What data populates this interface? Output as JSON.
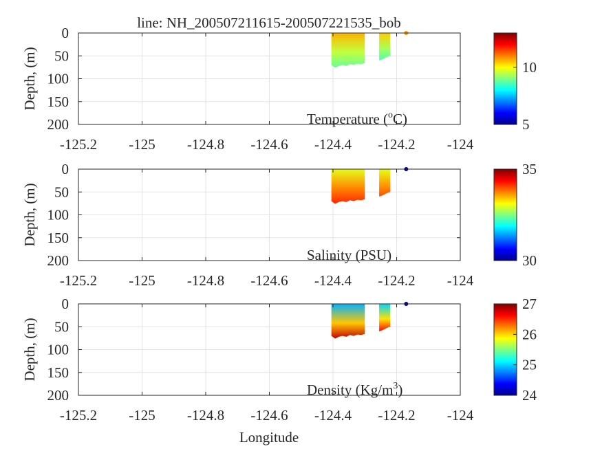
{
  "title": "line: NH_200507211615-200507221535_bob",
  "xlabel": "Longitude",
  "colormap": [
    "#00008f",
    "#0000ff",
    "#0080ff",
    "#00ffff",
    "#80ff80",
    "#ffff00",
    "#ff8000",
    "#ff0000",
    "#800000"
  ],
  "chart_data": [
    {
      "type": "heatmap",
      "panel_label": "Temperature (",
      "panel_label_sup": "o",
      "panel_label_tail": "C)",
      "ylabel": "Depth, (m)",
      "xlim": [
        -125.2,
        -124.0
      ],
      "ylim": [
        0,
        200
      ],
      "y_reversed": true,
      "xticks": [
        "-125.2",
        "-125",
        "-124.8",
        "-124.6",
        "-124.4",
        "-124.2",
        "-124"
      ],
      "yticks": [
        "0",
        "50",
        "100",
        "150",
        "200"
      ],
      "clim": [
        5,
        13
      ],
      "cticks": [
        5,
        10
      ],
      "grid": true,
      "sections": [
        {
          "x": [
            -124.405,
            -124.3
          ],
          "max_depth": [
            70,
            76,
            72,
            70,
            72,
            68,
            70,
            67,
            68,
            66
          ],
          "surface_value": 10.6,
          "bottom_value": 8.8
        },
        {
          "x": [
            -124.255,
            -124.22
          ],
          "max_depth": [
            60,
            58,
            55,
            52,
            50
          ],
          "surface_value": 10.4,
          "bottom_value": 8.6
        }
      ],
      "surface_point": {
        "x": -124.17,
        "y": 0,
        "value": 10.8
      }
    },
    {
      "type": "heatmap",
      "panel_label": "Salinity (PSU)",
      "panel_label_sup": "",
      "panel_label_tail": "",
      "ylabel": "Depth, (m)",
      "xlim": [
        -125.2,
        -124.0
      ],
      "ylim": [
        0,
        200
      ],
      "y_reversed": true,
      "xticks": [
        "-125.2",
        "-125",
        "-124.8",
        "-124.6",
        "-124.4",
        "-124.2",
        "-124"
      ],
      "yticks": [
        "0",
        "50",
        "100",
        "150",
        "200"
      ],
      "clim": [
        30,
        35
      ],
      "cticks": [
        30,
        35
      ],
      "grid": true,
      "sections": [
        {
          "x": [
            -124.405,
            -124.3
          ],
          "max_depth": [
            70,
            76,
            72,
            70,
            72,
            68,
            70,
            67,
            68,
            66
          ],
          "surface_value": 33.0,
          "bottom_value": 34.2
        },
        {
          "x": [
            -124.255,
            -124.22
          ],
          "max_depth": [
            60,
            58,
            55,
            52,
            50
          ],
          "surface_value": 33.0,
          "bottom_value": 34.0
        }
      ],
      "surface_point": {
        "x": -124.17,
        "y": 0,
        "value": 30.0
      }
    },
    {
      "type": "heatmap",
      "panel_label": "Density (Kg/m",
      "panel_label_sup": "3",
      "panel_label_tail": ")",
      "ylabel": "Depth, (m)",
      "xlim": [
        -125.2,
        -124.0
      ],
      "ylim": [
        0,
        200
      ],
      "y_reversed": true,
      "xticks": [
        "-125.2",
        "-125",
        "-124.8",
        "-124.6",
        "-124.4",
        "-124.2",
        "-124"
      ],
      "yticks": [
        "0",
        "50",
        "100",
        "150",
        "200"
      ],
      "clim": [
        24,
        27
      ],
      "cticks": [
        24,
        25,
        26,
        27
      ],
      "grid": true,
      "sections": [
        {
          "x": [
            -124.405,
            -124.3
          ],
          "max_depth": [
            70,
            76,
            72,
            70,
            72,
            68,
            70,
            67,
            68,
            66
          ],
          "surface_value": 24.9,
          "bottom_value": 26.8
        },
        {
          "x": [
            -124.255,
            -124.22
          ],
          "max_depth": [
            60,
            58,
            55,
            52,
            50
          ],
          "surface_value": 25.0,
          "bottom_value": 26.6
        }
      ],
      "surface_point": {
        "x": -124.17,
        "y": 0,
        "value": 24.0
      }
    }
  ]
}
